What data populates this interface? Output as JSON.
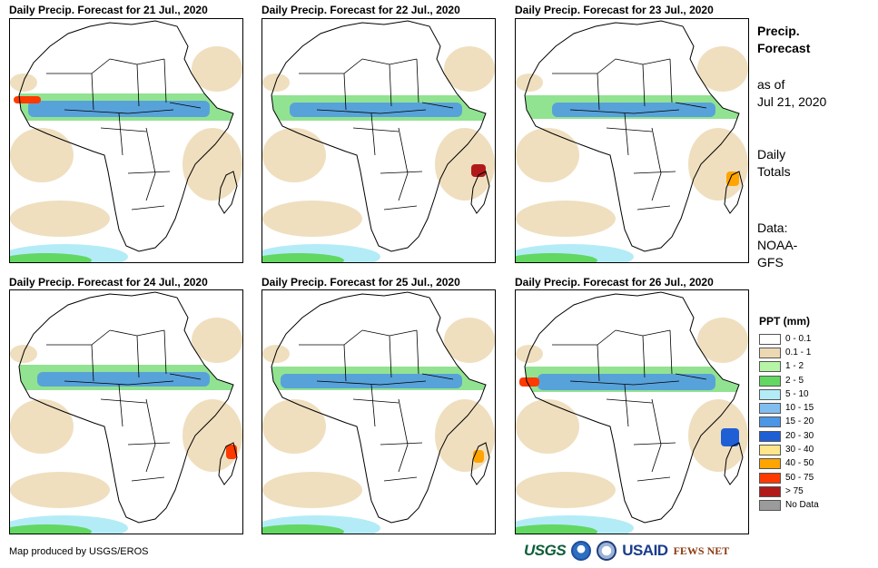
{
  "panels": [
    {
      "title": "Daily Precip. Forecast for 21 Jul., 2020"
    },
    {
      "title": "Daily Precip. Forecast for 22 Jul., 2020"
    },
    {
      "title": "Daily Precip. Forecast for 23 Jul., 2020"
    },
    {
      "title": "Daily Precip. Forecast for 24 Jul., 2020"
    },
    {
      "title": "Daily Precip. Forecast for 25 Jul., 2020"
    },
    {
      "title": "Daily Precip. Forecast for 26 Jul., 2020"
    }
  ],
  "sidebar": {
    "heading_line1": "Precip.",
    "heading_line2": "Forecast",
    "asof_line1": "as of",
    "asof_line2": "Jul 21, 2020",
    "totals_line1": "Daily",
    "totals_line2": "Totals",
    "data_line1": "Data:",
    "data_line2": "NOAA-",
    "data_line3": "GFS"
  },
  "legend": {
    "title": "PPT (mm)",
    "items": [
      {
        "label": "0 - 0.1",
        "color": "#ffffff"
      },
      {
        "label": "0.1 - 1",
        "color": "#ecd9b4"
      },
      {
        "label": "1 - 2",
        "color": "#b6f5a6"
      },
      {
        "label": "2 - 5",
        "color": "#62d762"
      },
      {
        "label": "5 - 10",
        "color": "#b3ecf7"
      },
      {
        "label": "10 - 15",
        "color": "#82bdf0"
      },
      {
        "label": "15 - 20",
        "color": "#4d96e6"
      },
      {
        "label": "20 - 30",
        "color": "#1f5fd6"
      },
      {
        "label": "30 - 40",
        "color": "#ffe68a"
      },
      {
        "label": "40 - 50",
        "color": "#ffa400"
      },
      {
        "label": "50 - 75",
        "color": "#ff3a00"
      },
      {
        "label": "> 75",
        "color": "#b21a1a"
      },
      {
        "label": "No Data",
        "color": "#9b9b9b"
      }
    ]
  },
  "credit": "Map produced by USGS/EROS",
  "logos": {
    "usgs": "USGS",
    "usaid": "USAID",
    "fews": "FEWS NET"
  }
}
